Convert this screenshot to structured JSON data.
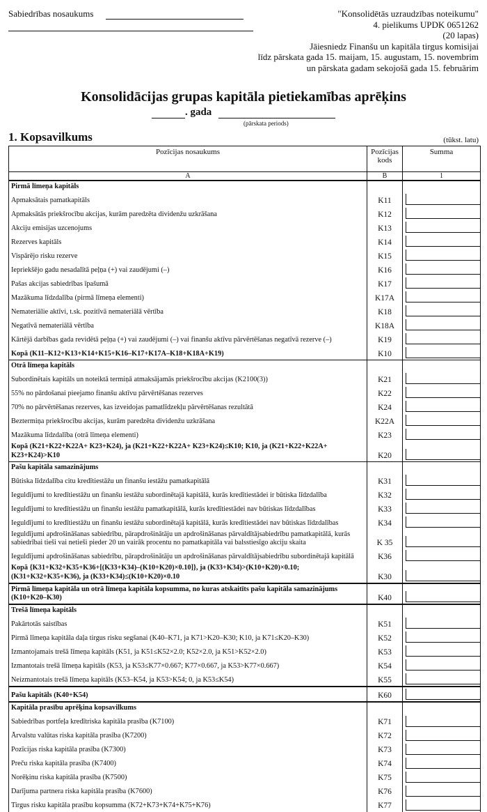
{
  "header": {
    "company_label": "Sabiedrības nosaukums",
    "right_lines": [
      "\"Konsolidētās uzraudzības noteikumu\"",
      "4. pielikums UPDK 0651262",
      "(20 lapas)",
      "Jāiesniedz Finanšu un kapitāla tirgus komisijai",
      "līdz pārskata gada 15. maijam, 15. augustam, 15. novembrim",
      "un pārskata gadam sekojošā gada 15. februārim"
    ]
  },
  "title": "Konsolidācijas grupas kapitāla pietiekamības aprēķins",
  "year_label": ". gada",
  "period_note": "(pārskata periods)",
  "section": {
    "title": "1. Kopsavilkums",
    "unit": "(tūkst. latu)"
  },
  "table": {
    "columns": [
      "Pozīcijas nosaukums",
      "Pozīcijas kods",
      "Summa"
    ],
    "column_letters": [
      "A",
      "B",
      "1"
    ],
    "sections": [
      {
        "title": "Pirmā līmeņa kapitāls",
        "rows": [
          [
            "Apmaksātais pamatkapitāls",
            "K11"
          ],
          [
            "Apmaksātās priekšrocību akcijas, kurām paredzēta dividenžu uzkrāšana",
            "K12"
          ],
          [
            "Akciju emisijas uzcenojums",
            "K13"
          ],
          [
            "Rezerves kapitāls",
            "K14"
          ],
          [
            "Vispārējo risku rezerve",
            "K15"
          ],
          [
            "Iepriekšējo gadu nesadalītā peļņa (+) vai zaudējumi (–)",
            "K16"
          ],
          [
            "Pašas akcijas sabiedrības īpašumā",
            "K17"
          ],
          [
            "Mazākuma līdzdalība (pirmā līmeņa elementi)",
            "K17A"
          ],
          [
            "Nemateriālie aktīvi, t.sk. pozitīvā nemateriālā vērtība",
            "K18"
          ],
          [
            "Negatīvā nemateriālā vērtība",
            "K18A"
          ],
          [
            "Kārtējā darbības gada revidētā peļņa (+) vai zaudējumi (–) vai finanšu aktīvu pārvērtēšanas negatīvā rezerve (–)",
            "K19"
          ]
        ],
        "total": [
          "Kopā (K11–K12+K13+K14+K15+K16–K17+K17A–K18+K18A+K19)",
          "K10"
        ]
      },
      {
        "title": "Otrā līmeņa kapitāls",
        "rows": [
          [
            "Subordinētais kapitāls un noteiktā termiņā atmaksājamās priekšrocību akcijas  (K2100(3))",
            "K21"
          ],
          [
            "55% no pārdošanai pieejamo finanšu aktīvu pārvērtēšanas rezerves",
            "K22"
          ],
          [
            "70% no pārvērtēšanas rezerves, kas izveidojas pamatlīdzekļu pārvērtēšanas rezultātā",
            "K24"
          ],
          [
            "Beztermiņa priekšrocību akcijas, kurām paredzēta dividenžu uzkrāšana",
            "K22A"
          ],
          [
            "Mazākuma līdzdalība (otrā līmeņa elementi)",
            "K23"
          ]
        ],
        "total": [
          "Kopā (K21+K22+K22A+ K23+K24), ja (K21+K22+K22A+ K23+K24)≤K10; K10, ja (K21+K22+K22A+ K23+K24)>K10",
          "K20"
        ]
      },
      {
        "title": "Pašu kapitāla samazinājums",
        "rows": [
          [
            "Būtiska līdzdalība citu kredītiestāžu un finanšu iestāžu pamatkapitālā",
            "K31"
          ],
          [
            "Ieguldījumi to kredītiestāžu un finanšu iestāžu subordinētajā kapitālā, kurās kredītiestādei ir būtiska līdzdalība",
            "K32"
          ],
          [
            "Ieguldījumi to kredītiestāžu un finanšu iestāžu pamatkapitālā, kurās kredītiestādei nav būtiskas līdzdalības",
            "K33"
          ],
          [
            "Ieguldījumi to kredītiestāžu un finanšu iestāžu subordinētajā kapitālā, kurās kredītiestādei nav būtiskas līdzdalības",
            "K34"
          ],
          [
            "Ieguldījumi apdrošināšanas sabiedrību, pārapdrošinātāju un apdrošināšanas pārvaldītājsabiedrību pamatkapitālā, kurās sabiedrībai tieši vai netieši pieder 20 un vairāk procentu no pamatkapitāla vai balsstiesīgo akciju skaita",
            "K 35"
          ],
          [
            "Ieguldījumi apdrošināšanas sabiedrību, pārapdrošinātāju un apdrošināšanas pārvaldītājsabiedrību subordinētajā kapitālā",
            "K36"
          ]
        ],
        "total": [
          "Kopā {K31+K32+K35+K36+[(K33+K34)–(K10+K20)×0.10]}, ja (K33+K34)>(K10+K20)×0.10; (K31+K32+K35+K36), ja (K33+K34)≤(K10+K20)×0.10",
          "K30"
        ]
      },
      {
        "total": [
          "Pirmā līmeņa kapitāla un otrā līmeņa kapitāla kopsumma, no kuras atskaitīts pašu kapitāla samazinājums (K10+K20–K30)",
          "K40"
        ]
      },
      {
        "title": "Trešā līmeņa kapitāls",
        "rows": [
          [
            "Pakārtotās saistības",
            "K51"
          ],
          [
            "Pirmā līmeņa kapitāla daļa tirgus risku segšanai (K40–K71, ja K71>K20–K30; K10, ja K71≤K20–K30)",
            "K52"
          ],
          [
            "Izmantojamais trešā līmeņa kapitāls (K51, ja K51≤K52×2.0; K52×2.0, ja K51>K52×2.0)",
            "K53"
          ],
          [
            "Izmantotais trešā līmeņa kapitāls (K53, ja K53≤K77×0.667; K77×0.667, ja K53>K77×0.667)",
            "K54"
          ],
          [
            "Neizmantotais trešā līmeņa kapitāls (K53–K54, ja K53>K54; 0, ja K53≤K54)",
            "K55"
          ]
        ]
      },
      {
        "total": [
          "Pašu kapitāls (K40+K54)",
          "K60"
        ]
      },
      {
        "title": "Kapitāla prasību aprēķina kopsavilkums",
        "rows": [
          [
            "Sabiedrības portfeļa kredītriska kapitāla prasība (K7100)",
            "K71"
          ],
          [
            "Ārvalstu valūtas riska kapitāla prasība (K7200)",
            "K72"
          ],
          [
            "Pozīcijas riska kapitāla prasība (K7300)",
            "K73"
          ],
          [
            "Preču riska kapitāla prasība (K7400)",
            "K74"
          ],
          [
            "Norēķinu riska kapitāla prasība (K7500)",
            "K75"
          ],
          [
            "Darījuma partnera riska kapitāla prasība (K7600)",
            "K76"
          ],
          [
            "Tirgus risku kapitāla prasību kopsumma (K72+K73+K74+K75+K76)",
            "K77"
          ]
        ]
      }
    ]
  }
}
